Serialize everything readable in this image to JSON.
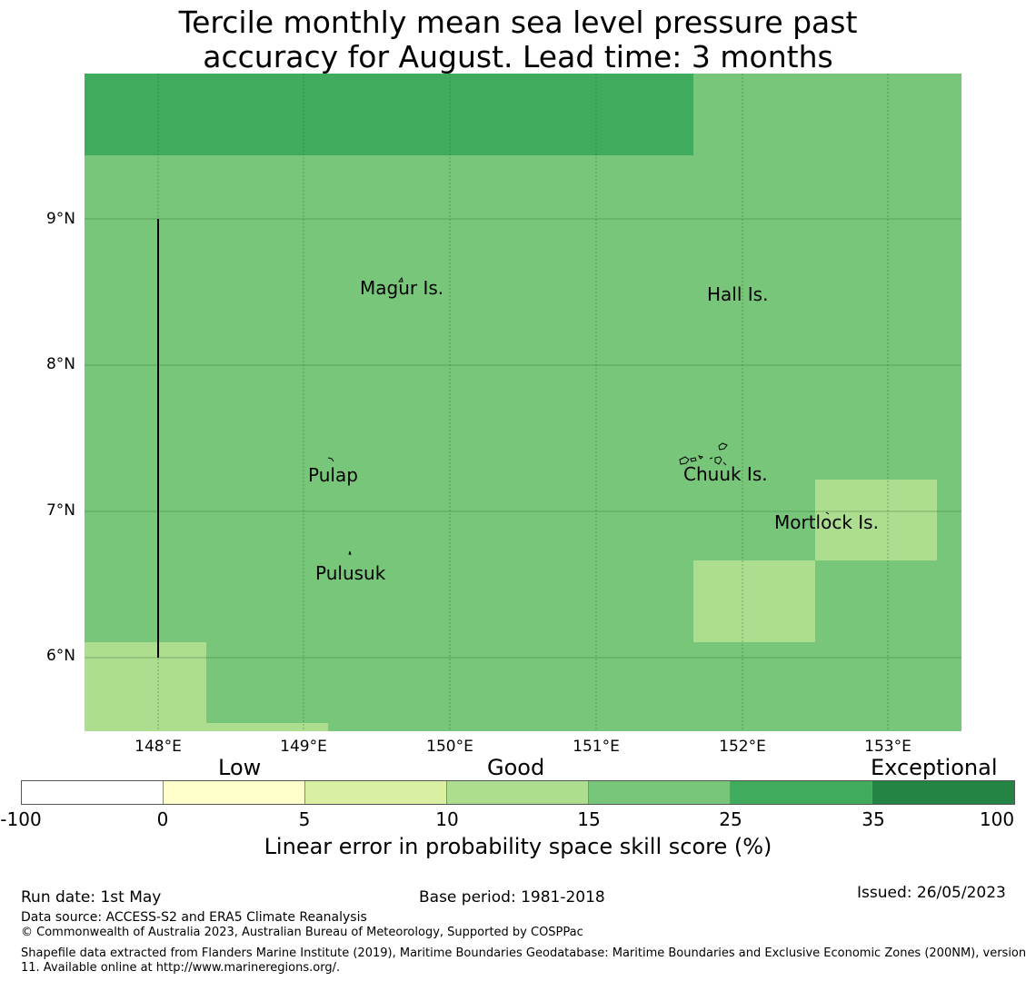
{
  "title": {
    "line1": "Tercile monthly mean sea level pressure past",
    "line2": "accuracy for August. Lead time: 3 months"
  },
  "map": {
    "lat_labels": [
      "9°N",
      "8°N",
      "7°N",
      "6°N"
    ],
    "lon_labels": [
      "148°E",
      "149°E",
      "150°E",
      "151°E",
      "152°E",
      "153°E"
    ],
    "places": [
      "Magur Is.",
      "Hall Is.",
      "Pulap",
      "Chuuk Is.",
      "Mortlock Is.",
      "Pulusuk"
    ],
    "colors": {
      "base": "#78c679",
      "high": "#41ab5d",
      "low": "#addd8e"
    }
  },
  "colorbar": {
    "categories": [
      "Low",
      "Good",
      "Exceptional"
    ],
    "ticks": [
      "-100",
      "0",
      "5",
      "10",
      "15",
      "25",
      "35",
      "100"
    ],
    "colors": [
      "#ffffff",
      "#ffffcc",
      "#d9f0a3",
      "#addd8e",
      "#78c679",
      "#41ab5d",
      "#238443"
    ],
    "label": "Linear error in probability space skill score (%)"
  },
  "footer": {
    "run_date": "Run date: 1st May",
    "base_period": "Base period: 1981-2018",
    "issued": "Issued: 26/05/2023",
    "data_source": "Data source: ACCESS-S2 and ERA5 Climate Reanalysis",
    "copyright": "© Commonwealth of Australia 2023, Australian Bureau of Meteorology, Supported by COSPPac",
    "shapefile": "Shapefile data extracted from Flanders Marine Institute (2019), Maritime Boundaries Geodatabase: Maritime Boundaries and Exclusive Economic Zones (200NM), version 11. Available online at http://www.marineregions.org/."
  }
}
